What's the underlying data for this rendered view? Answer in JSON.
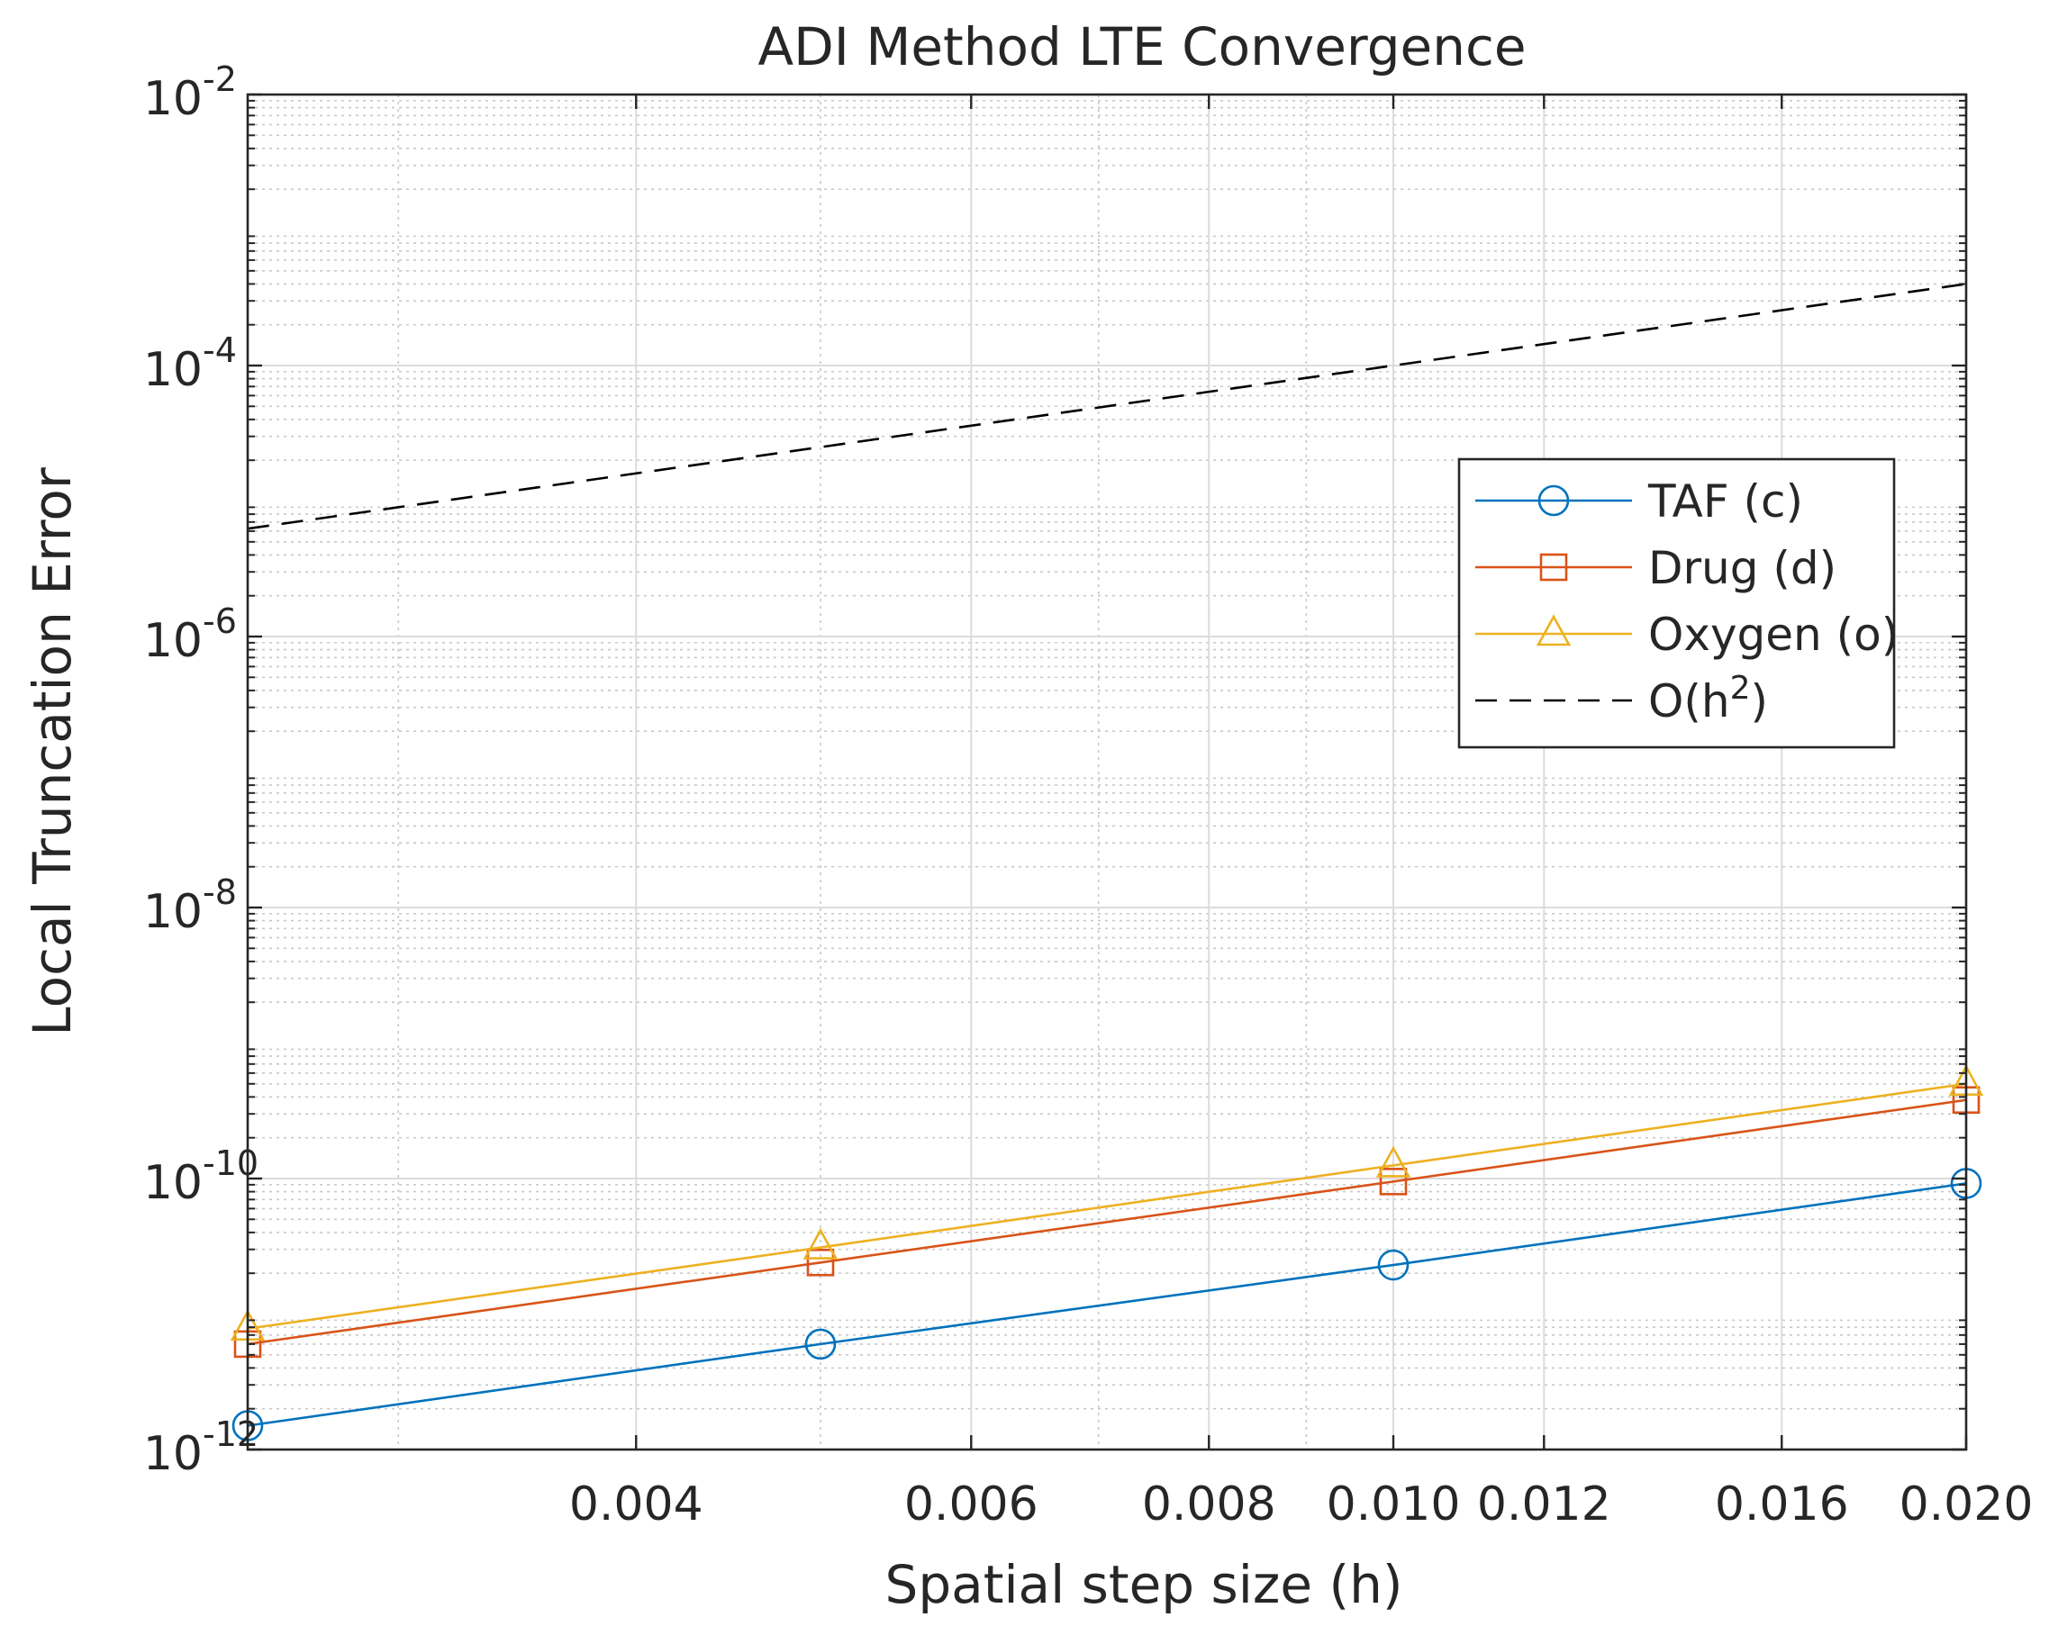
{
  "chart_data": {
    "type": "line",
    "title": "ADI Method LTE Convergence",
    "xlabel": "Spatial step size (h)",
    "ylabel": "Local Truncation Error",
    "xscale": "log",
    "yscale": "log",
    "xlim": [
      0.0025,
      0.02
    ],
    "ylim": [
      1e-12,
      0.01
    ],
    "grid": true,
    "minor_grid": true,
    "legend_position": "right, upper-middle",
    "x_ticks": [
      {
        "value": 0.004,
        "label": "0.004"
      },
      {
        "value": 0.006,
        "label": "0.006"
      },
      {
        "value": 0.008,
        "label": "0.008"
      },
      {
        "value": 0.01,
        "label": "0.010"
      },
      {
        "value": 0.012,
        "label": "0.012"
      },
      {
        "value": 0.016,
        "label": "0.016"
      },
      {
        "value": 0.02,
        "label": "0.020"
      }
    ],
    "y_ticks": [
      {
        "value": 1e-12,
        "base": "10",
        "exp": "-12"
      },
      {
        "value": 1e-10,
        "base": "10",
        "exp": "-10"
      },
      {
        "value": 1e-08,
        "base": "10",
        "exp": "-8"
      },
      {
        "value": 1e-06,
        "base": "10",
        "exp": "-6"
      },
      {
        "value": 0.0001,
        "base": "10",
        "exp": "-4"
      },
      {
        "value": 0.01,
        "base": "10",
        "exp": "-2"
      }
    ],
    "series": [
      {
        "name": "TAF (c)",
        "color": "#0072BD",
        "marker": "circle",
        "line": "solid",
        "x": [
          0.0025,
          0.005,
          0.01,
          0.02
        ],
        "y": [
          1.5e-12,
          6e-12,
          2.3e-11,
          9.2e-11
        ]
      },
      {
        "name": "Drug (d)",
        "color": "#D95319",
        "marker": "square",
        "line": "solid",
        "x": [
          0.0025,
          0.005,
          0.01,
          0.02
        ],
        "y": [
          6e-12,
          2.4e-11,
          9.5e-11,
          3.8e-10
        ]
      },
      {
        "name": "Oxygen (o)",
        "color": "#EDB120",
        "marker": "triangle",
        "line": "solid",
        "x": [
          0.0025,
          0.005,
          0.01,
          0.02
        ],
        "y": [
          7.8e-12,
          3.1e-11,
          1.25e-10,
          5e-10
        ]
      },
      {
        "name": "O(h²)",
        "legend_base": "O(h",
        "legend_sup": "2",
        "legend_tail": ")",
        "color": "#000000",
        "marker": "none",
        "line": "dashed",
        "x": [
          0.0025,
          0.005,
          0.01,
          0.02
        ],
        "y": [
          6.25e-06,
          2.5e-05,
          0.0001,
          0.0004
        ]
      }
    ]
  }
}
